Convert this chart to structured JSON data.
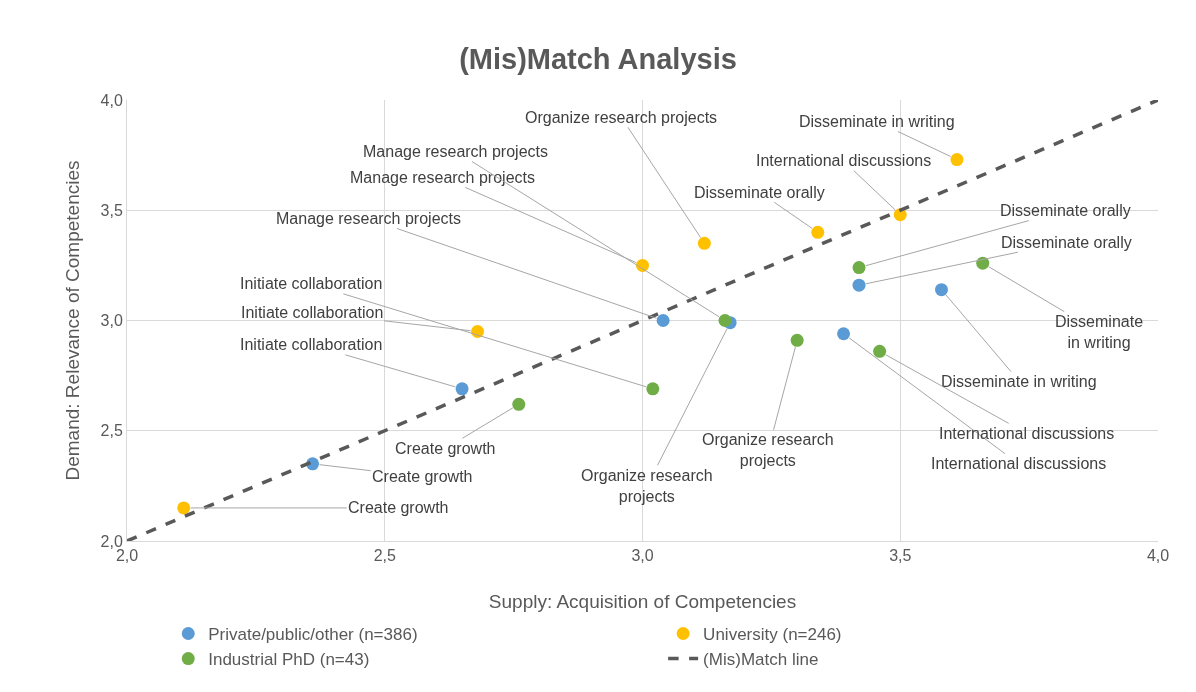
{
  "chart_data": {
    "type": "scatter",
    "title": "(Mis)Match Analysis",
    "xlabel": "Supply: Acquisition of Competencies",
    "ylabel": "Demand: Relevance of Competencies",
    "xlim": [
      2,
      4
    ],
    "xticks": [
      {
        "value": 2,
        "label": "2,0"
      },
      {
        "value": 2.5,
        "label": "2,5"
      },
      {
        "value": 3,
        "label": "3,0"
      },
      {
        "value": 3.5,
        "label": "3,5"
      },
      {
        "value": 4,
        "label": "4,0"
      }
    ],
    "ylim": [
      2,
      4
    ],
    "yticks": [
      {
        "value": 2,
        "label": "2,0"
      },
      {
        "value": 2.5,
        "label": "2,5"
      },
      {
        "value": 3,
        "label": "3,0"
      },
      {
        "value": 3.5,
        "label": "3,5"
      },
      {
        "value": 4,
        "label": "4,0"
      }
    ],
    "grid": true,
    "legend": "bottom",
    "marker": "circle",
    "series": [
      {
        "name": "Private/public/other (n=386)",
        "color": "#5b9bd5",
        "x": [
          2.36,
          2.65,
          3.04,
          3.17,
          3.42,
          3.58,
          3.39
        ],
        "values": [
          2.35,
          2.69,
          3.0,
          2.99,
          3.16,
          3.14,
          2.94
        ]
      },
      {
        "name": "University (n=246)",
        "color": "#ffc000",
        "x": [
          2.11,
          2.68,
          3.0,
          3.12,
          3.34,
          3.5,
          3.61
        ],
        "values": [
          2.15,
          2.95,
          3.25,
          3.35,
          3.4,
          3.48,
          3.73
        ]
      },
      {
        "name": "Industrial PhD (n=43)",
        "color": "#70ad47",
        "x": [
          2.76,
          3.02,
          3.16,
          3.3,
          3.42,
          3.66,
          3.46
        ],
        "values": [
          2.62,
          2.69,
          3.0,
          2.91,
          3.24,
          3.26,
          2.86
        ]
      },
      {
        "name": "(Mis)Match line",
        "type": "line",
        "color": "#595959",
        "line_style": "dashed",
        "marker": "none",
        "x": [
          2,
          4
        ],
        "values": [
          2,
          4
        ]
      }
    ],
    "annotations": [
      {
        "text": "Create growth",
        "x": 2.36,
        "y": 2.35
      },
      {
        "text": "Initiate collaboration",
        "x": 2.65,
        "y": 2.69
      },
      {
        "text": "Manage research projects",
        "x": 3.04,
        "y": 3.0
      },
      {
        "text": "Organize research\nprojects",
        "x": 3.17,
        "y": 2.99
      },
      {
        "text": "Disseminate orally",
        "x": 3.42,
        "y": 3.16
      },
      {
        "text": "Disseminate in writing",
        "x": 3.58,
        "y": 3.14
      },
      {
        "text": "International discussions",
        "x": 3.39,
        "y": 2.94
      },
      {
        "text": "Create growth",
        "x": 2.11,
        "y": 2.15
      },
      {
        "text": "Initiate collaboration",
        "x": 2.68,
        "y": 2.95
      },
      {
        "text": "Manage research projects",
        "x": 3.0,
        "y": 3.25
      },
      {
        "text": "Organize research projects",
        "x": 3.12,
        "y": 3.35
      },
      {
        "text": "Disseminate orally",
        "x": 3.34,
        "y": 3.4
      },
      {
        "text": "International discussions",
        "x": 3.5,
        "y": 3.48
      },
      {
        "text": "Disseminate in writing",
        "x": 3.61,
        "y": 3.73
      },
      {
        "text": "Create growth",
        "x": 2.76,
        "y": 2.62
      },
      {
        "text": "Initiate collaboration",
        "x": 3.02,
        "y": 2.69
      },
      {
        "text": "Manage research projects",
        "x": 3.16,
        "y": 3.0
      },
      {
        "text": "Organize research\nprojects",
        "x": 3.3,
        "y": 2.91
      },
      {
        "text": "Disseminate orally",
        "x": 3.42,
        "y": 3.24
      },
      {
        "text": "Disseminate\nin writing",
        "x": 3.66,
        "y": 3.26
      },
      {
        "text": "International discussions",
        "x": 3.46,
        "y": 2.86
      }
    ]
  }
}
